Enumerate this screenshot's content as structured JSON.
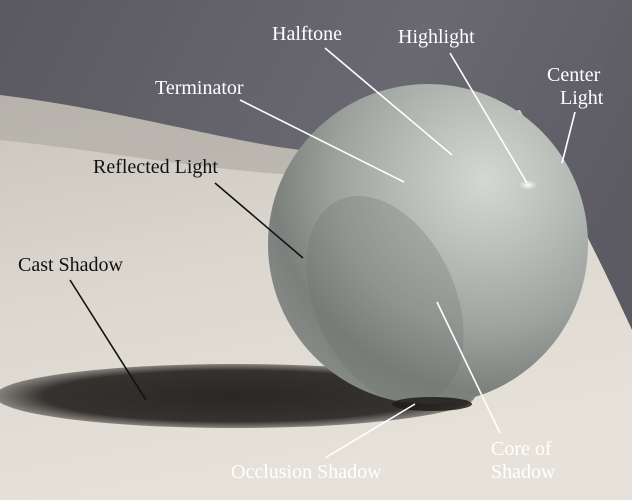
{
  "labels": {
    "halftone": "Halftone",
    "highlight": "Highlight",
    "center_light_1": "Center",
    "center_light_2": "Light",
    "terminator": "Terminator",
    "reflected_light": "Reflected Light",
    "cast_shadow": "Cast Shadow",
    "core_of_shadow_1": "Core of",
    "core_of_shadow_2": "Shadow",
    "occlusion_shadow": "Occlusion Shadow"
  },
  "colors": {
    "background_wall": "#5f5d66",
    "table_surface": "#d9d5cd",
    "sphere_light": "#b8bdb8",
    "sphere_dark": "#6f7370",
    "label_light": "#ffffff",
    "label_dark": "#111111"
  }
}
